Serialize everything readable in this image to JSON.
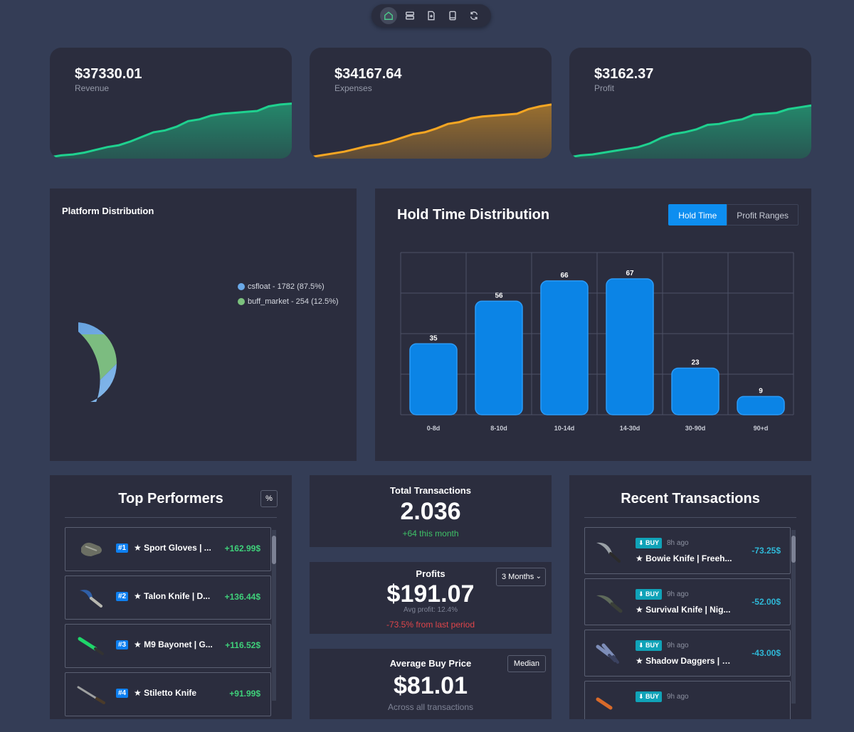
{
  "nav": [
    "home-icon",
    "layers-icon",
    "file-plus-icon",
    "tablet-icon",
    "refresh-icon"
  ],
  "stats": [
    {
      "value": "$37330.01",
      "label": "Revenue",
      "color": "#1fd18f",
      "trend": [
        0,
        2,
        3,
        5,
        8,
        11,
        13,
        17,
        22,
        27,
        29,
        33,
        39,
        41,
        45,
        47,
        48,
        49,
        50,
        55,
        57,
        58
      ]
    },
    {
      "value": "$34167.64",
      "label": "Expenses",
      "color": "#f5a623",
      "trend": [
        0,
        2,
        4,
        6,
        9,
        12,
        14,
        17,
        21,
        25,
        27,
        31,
        36,
        38,
        42,
        44,
        45,
        46,
        47,
        52,
        55,
        57
      ]
    },
    {
      "value": "$3162.37",
      "label": "Profit",
      "color": "#1fd18f",
      "trend": [
        0,
        2,
        3,
        5,
        7,
        9,
        11,
        15,
        21,
        25,
        27,
        30,
        35,
        36,
        39,
        41,
        46,
        47,
        48,
        52,
        54,
        56
      ]
    }
  ],
  "platform": {
    "title": "Platform Distribution",
    "legend": [
      {
        "label": "csfloat - 1782 (87.5%)",
        "color": "#6aa9e8"
      },
      {
        "label": "buff_market - 254 (12.5%)",
        "color": "#7cc27e"
      }
    ]
  },
  "hold": {
    "title": "Hold Time Distribution",
    "toggle_on": "Hold Time",
    "toggle_off": "Profit Ranges"
  },
  "chart_data": [
    {
      "type": "pie",
      "categories": [
        "csfloat",
        "buff_market"
      ],
      "values": [
        1782,
        254
      ],
      "percent": [
        87.5,
        12.5
      ],
      "colors": [
        "#5b9bdc",
        "#7cbc80"
      ],
      "legend": "right"
    },
    {
      "type": "bar",
      "categories": [
        "0-8d",
        "8-10d",
        "10-14d",
        "14-30d",
        "30-90d",
        "90+d"
      ],
      "values": [
        35,
        56,
        66,
        67,
        23,
        9
      ],
      "ylim": [
        0,
        80
      ],
      "grid": true,
      "bar_color": "#0b84e6"
    }
  ],
  "top": {
    "title": "Top Performers",
    "pct_label": "%",
    "items": [
      {
        "rank": "#1",
        "name": "★ Sport Gloves | ...",
        "value": "+162.99$"
      },
      {
        "rank": "#2",
        "name": "★ Talon Knife | D...",
        "value": "+136.44$"
      },
      {
        "rank": "#3",
        "name": "★ M9 Bayonet | G...",
        "value": "+116.52$"
      },
      {
        "rank": "#4",
        "name": "★ Stiletto Knife",
        "value": "+91.99$"
      }
    ]
  },
  "total": {
    "title": "Total Transactions",
    "value": "2.036",
    "sub": "+64 this month"
  },
  "profits": {
    "title": "Profits",
    "value": "$191.07",
    "avg": "Avg profit: 12.4%",
    "change": "-73.5% from last period",
    "select": "3 Months"
  },
  "avgbuy": {
    "title": "Average Buy Price",
    "value": "$81.01",
    "sub": "Across all transactions",
    "button": "Median"
  },
  "recent": {
    "title": "Recent Transactions",
    "items": [
      {
        "type": "BUY",
        "ago": "8h ago",
        "name": "★ Bowie Knife | Freeh...",
        "value": "-73.25$"
      },
      {
        "type": "BUY",
        "ago": "9h ago",
        "name": "★ Survival Knife | Nig...",
        "value": "-52.00$"
      },
      {
        "type": "BUY",
        "ago": "9h ago",
        "name": "★ Shadow Daggers | B...",
        "value": "-43.00$"
      },
      {
        "type": "BUY",
        "ago": "9h ago",
        "name": "",
        "value": ""
      }
    ]
  }
}
